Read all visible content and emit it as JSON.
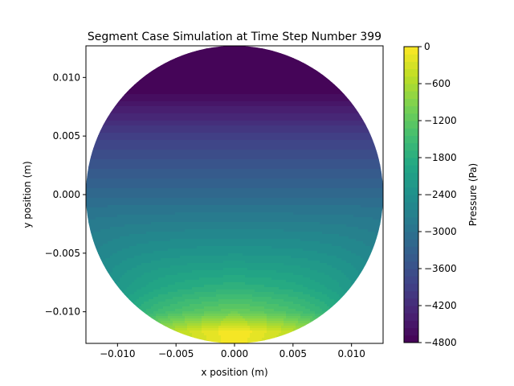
{
  "chart_data": {
    "type": "heatmap",
    "subtype": "filled-contour",
    "title": "Segment Case Simulation at Time Step Number 399",
    "xlabel": "x position (m)",
    "ylabel": "y position (m)",
    "xlim": [
      -0.0127,
      0.0127
    ],
    "ylim": [
      -0.0127,
      0.0127
    ],
    "xticks": [
      "−0.010",
      "−0.005",
      "0.000",
      "0.005",
      "0.010"
    ],
    "xtick_values": [
      -0.01,
      -0.005,
      0.0,
      0.005,
      0.01
    ],
    "yticks": [
      "0.010",
      "0.005",
      "0.000",
      "−0.005",
      "−0.010"
    ],
    "ytick_values": [
      0.01,
      0.005,
      0.0,
      -0.005,
      -0.01
    ],
    "domain_shape": "circle",
    "domain_radius": 0.0127,
    "colormap": "viridis",
    "colorbar": {
      "label": "Pressure (Pa)",
      "range": [
        -4800,
        0
      ],
      "ticks": [
        "0",
        "−600",
        "−1200",
        "−1800",
        "−2400",
        "−3000",
        "−3600",
        "−4200",
        "−4800"
      ],
      "tick_values": [
        0,
        -600,
        -1200,
        -1800,
        -2400,
        -3000,
        -3600,
        -4200,
        -4800
      ],
      "levels": 40
    },
    "field": {
      "description_values": "pressure lowest (≈ -4800 Pa) near top y=0.0127, rising to ≈ 0 Pa at bottom center y=-0.0117",
      "y_profile": [
        {
          "y": 0.0127,
          "p": -4800
        },
        {
          "y": 0.008,
          "p": -4560
        },
        {
          "y": 0.005,
          "p": -3900
        },
        {
          "y": 0.0,
          "p": -3150
        },
        {
          "y": -0.005,
          "p": -2300
        },
        {
          "y": -0.008,
          "p": -1700
        },
        {
          "y": -0.01,
          "p": -1100
        },
        {
          "y": -0.0117,
          "p": 0
        }
      ]
    }
  }
}
